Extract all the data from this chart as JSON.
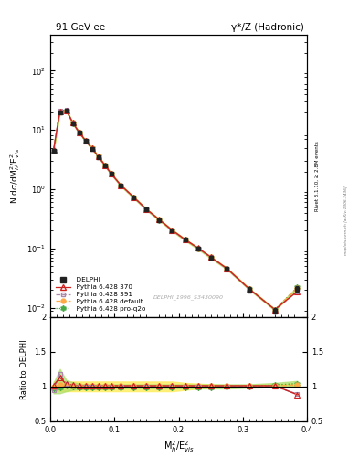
{
  "title_left": "91 GeV ee",
  "title_right": "γ*/Z (Hadronic)",
  "xlabel": "M$^2_h$/E$^2_{vis}$",
  "ylabel_main": "N dσ/dM$^2_h$/E$^2_{vis}$",
  "ylabel_ratio": "Ratio to DELPHI",
  "ylabel_right": "Rivet 3.1.10, ≥ 2.8M events",
  "watermark": "mcplots.cern.ch [arXiv:1306.3436]",
  "analysis_label": "DELPHI_1996_S3430090",
  "xlim": [
    0.0,
    0.4
  ],
  "ylim_main": [
    0.007,
    400
  ],
  "ylim_ratio": [
    0.5,
    2.0
  ],
  "x_data": [
    0.005,
    0.015,
    0.025,
    0.035,
    0.045,
    0.055,
    0.065,
    0.075,
    0.085,
    0.095,
    0.11,
    0.13,
    0.15,
    0.17,
    0.19,
    0.21,
    0.23,
    0.25,
    0.275,
    0.31,
    0.35,
    0.385
  ],
  "y_delphi": [
    4.5,
    20.0,
    21.0,
    13.0,
    9.0,
    6.5,
    4.8,
    3.5,
    2.5,
    1.8,
    1.15,
    0.72,
    0.45,
    0.3,
    0.2,
    0.14,
    0.1,
    0.07,
    0.045,
    0.02,
    0.009,
    0.021
  ],
  "y_pythia370": [
    4.55,
    20.8,
    21.5,
    13.3,
    9.1,
    6.6,
    4.9,
    3.58,
    2.56,
    1.83,
    1.17,
    0.735,
    0.458,
    0.307,
    0.203,
    0.142,
    0.102,
    0.072,
    0.0462,
    0.0208,
    0.0093,
    0.0188
  ],
  "y_pythia391": [
    4.4,
    21.5,
    21.8,
    13.2,
    9.05,
    6.55,
    4.85,
    3.52,
    2.52,
    1.81,
    1.16,
    0.728,
    0.452,
    0.304,
    0.201,
    0.141,
    0.101,
    0.071,
    0.0457,
    0.0205,
    0.0092,
    0.019
  ],
  "y_pythia_default": [
    4.5,
    20.5,
    21.5,
    13.2,
    9.1,
    6.6,
    4.9,
    3.56,
    2.55,
    1.82,
    1.16,
    0.73,
    0.455,
    0.305,
    0.202,
    0.141,
    0.101,
    0.071,
    0.046,
    0.0208,
    0.0092,
    0.0215
  ],
  "y_pythia_proq2o": [
    4.48,
    20.3,
    21.4,
    13.15,
    9.05,
    6.55,
    4.87,
    3.54,
    2.53,
    1.81,
    1.155,
    0.725,
    0.452,
    0.303,
    0.201,
    0.14,
    0.1,
    0.07,
    0.0458,
    0.0207,
    0.0093,
    0.022
  ],
  "ratio_370": [
    1.01,
    1.13,
    1.03,
    1.02,
    1.01,
    1.01,
    1.01,
    1.01,
    1.01,
    1.01,
    1.01,
    1.01,
    1.01,
    1.01,
    1.01,
    1.01,
    1.01,
    1.01,
    1.01,
    1.01,
    1.01,
    0.88
  ],
  "ratio_391": [
    0.94,
    1.18,
    1.04,
    1.01,
    1.0,
    1.0,
    1.0,
    1.0,
    1.0,
    1.0,
    1.0,
    1.0,
    1.0,
    1.0,
    1.0,
    1.0,
    1.0,
    1.0,
    1.0,
    1.0,
    1.0,
    0.89
  ],
  "ratio_default": [
    1.0,
    1.02,
    1.02,
    1.01,
    1.01,
    1.01,
    1.01,
    1.01,
    1.01,
    1.01,
    1.01,
    1.01,
    1.01,
    1.01,
    1.01,
    1.01,
    1.01,
    1.01,
    1.01,
    1.01,
    1.01,
    1.02
  ],
  "ratio_proq2o": [
    0.97,
    0.98,
    1.01,
    1.0,
    0.99,
    0.99,
    0.99,
    0.99,
    0.99,
    0.99,
    0.99,
    0.99,
    0.99,
    0.99,
    0.99,
    0.99,
    0.99,
    0.99,
    1.0,
    1.0,
    1.02,
    1.04
  ],
  "band_default_lo": [
    0.93,
    0.93,
    0.93,
    0.93,
    0.93,
    0.93,
    0.93,
    0.93,
    0.93,
    0.93,
    0.93,
    0.93,
    0.93,
    0.93,
    0.93,
    0.95,
    0.97,
    0.98,
    0.99,
    1.0,
    1.0,
    1.0
  ],
  "band_default_hi": [
    1.07,
    1.07,
    1.07,
    1.07,
    1.07,
    1.07,
    1.07,
    1.07,
    1.07,
    1.07,
    1.07,
    1.07,
    1.07,
    1.07,
    1.07,
    1.05,
    1.04,
    1.03,
    1.02,
    1.02,
    1.03,
    1.05
  ],
  "band_proq2o_lo": [
    0.9,
    0.9,
    0.93,
    0.95,
    0.96,
    0.97,
    0.97,
    0.97,
    0.97,
    0.97,
    0.97,
    0.97,
    0.97,
    0.97,
    0.97,
    0.97,
    0.97,
    0.97,
    0.97,
    0.98,
    0.99,
    1.0
  ],
  "band_proq2o_hi": [
    1.05,
    1.25,
    1.09,
    1.06,
    1.04,
    1.03,
    1.03,
    1.03,
    1.03,
    1.03,
    1.03,
    1.03,
    1.03,
    1.03,
    1.03,
    1.03,
    1.03,
    1.03,
    1.03,
    1.03,
    1.05,
    1.08
  ],
  "color_delphi": "#222222",
  "color_370": "#cc2222",
  "color_391": "#aa88aa",
  "color_default": "#ffaa44",
  "color_proq2o": "#44aa44",
  "band_color_default": "#ffee66",
  "band_color_proq2o": "#aadd66",
  "bg_color": "#ffffff",
  "delphi_err": [
    0.3,
    0.8,
    0.8,
    0.5,
    0.4,
    0.3,
    0.2,
    0.15,
    0.1,
    0.08,
    0.05,
    0.03,
    0.02,
    0.015,
    0.01,
    0.008,
    0.005,
    0.004,
    0.003,
    0.002,
    0.001,
    0.002
  ]
}
